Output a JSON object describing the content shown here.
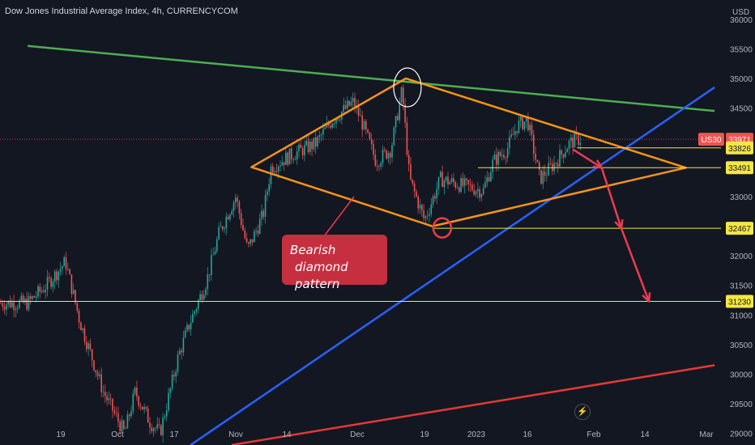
{
  "header": {
    "title": "Dow Jones Industrial Average Index, 4h, CURRENCYCOM"
  },
  "annotation": {
    "line1": "Bearish",
    "line2": "diamond pattern"
  },
  "colors": {
    "background": "#131722",
    "up": "#26a69a",
    "down": "#ef5350",
    "orange": "#f7931a",
    "green": "#4caf50",
    "blue": "#2962ff",
    "red": "#e53935",
    "yellow": "#f5e642",
    "arrow": "#ef3b4e"
  },
  "icons": {
    "flash": "lightning-icon"
  },
  "chart_data": {
    "type": "candlestick",
    "title": "Dow Jones Industrial Average Index, 4h, CURRENCYCOM",
    "currency": "USD",
    "ylim": [
      28800,
      36300
    ],
    "y_ticks": [
      29000,
      29500,
      30000,
      30500,
      31000,
      31500,
      32000,
      32500,
      33000,
      33500,
      34000,
      34500,
      35000,
      35500,
      36000
    ],
    "x_ticks": [
      "19",
      "Oct",
      "17",
      "Nov",
      "14",
      "Dec",
      "19",
      "2023",
      "16",
      "Feb",
      "14",
      "Mar"
    ],
    "grid": false,
    "price_path": [
      {
        "x": "Sep 12",
        "y": 31200
      },
      {
        "x": "Sep 16",
        "y": 31500
      },
      {
        "x": "Sep 20",
        "y": 31900
      },
      {
        "x": "Sep 23",
        "y": 30900
      },
      {
        "x": "Sep 28",
        "y": 29700
      },
      {
        "x": "Oct 3",
        "y": 29000
      },
      {
        "x": "Oct 6",
        "y": 29700
      },
      {
        "x": "Oct 10",
        "y": 29200
      },
      {
        "x": "Oct 13",
        "y": 29000
      },
      {
        "x": "Oct 18",
        "y": 30300
      },
      {
        "x": "Oct 21",
        "y": 30900
      },
      {
        "x": "Oct 25",
        "y": 31600
      },
      {
        "x": "Oct 28",
        "y": 32400
      },
      {
        "x": "Nov 1",
        "y": 33000
      },
      {
        "x": "Nov 4",
        "y": 32100
      },
      {
        "x": "Nov 8",
        "y": 32700
      },
      {
        "x": "Nov 10",
        "y": 33500
      },
      {
        "x": "Nov 15",
        "y": 33700
      },
      {
        "x": "Nov 21",
        "y": 33900
      },
      {
        "x": "Nov 25",
        "y": 34300
      },
      {
        "x": "Nov 30",
        "y": 34600
      },
      {
        "x": "Dec 2",
        "y": 34300
      },
      {
        "x": "Dec 6",
        "y": 33600
      },
      {
        "x": "Dec 10",
        "y": 33800
      },
      {
        "x": "Dec 13",
        "y": 34800
      },
      {
        "x": "Dec 15",
        "y": 33300
      },
      {
        "x": "Dec 19",
        "y": 32600
      },
      {
        "x": "Dec 23",
        "y": 33300
      },
      {
        "x": "Dec 28",
        "y": 33200
      },
      {
        "x": "Jan 3",
        "y": 33100
      },
      {
        "x": "Jan 6",
        "y": 33600
      },
      {
        "x": "Jan 10",
        "y": 33800
      },
      {
        "x": "Jan 13",
        "y": 34200
      },
      {
        "x": "Jan 16",
        "y": 34300
      },
      {
        "x": "Jan 19",
        "y": 33300
      },
      {
        "x": "Jan 23",
        "y": 33600
      },
      {
        "x": "Jan 26",
        "y": 33900
      },
      {
        "x": "Jan 28",
        "y": 33971
      }
    ],
    "price_tags": [
      {
        "label": "US30",
        "value": 33971,
        "color": "#ef5350"
      },
      {
        "label": "",
        "value": 33826,
        "color": "#f5e642"
      },
      {
        "label": "",
        "value": 33491,
        "color": "#f5e642"
      },
      {
        "label": "",
        "value": 32467,
        "color": "#f5e642"
      },
      {
        "label": "",
        "value": 31230,
        "color": "#f5e642"
      }
    ],
    "horizontal_levels": [
      33826,
      33491,
      32467,
      31230
    ],
    "diamond": {
      "left": {
        "x": "Nov 5",
        "y": 33500
      },
      "top": {
        "x": "Dec 14",
        "y": 35000
      },
      "right": {
        "x": "Feb 24",
        "y": 33490
      },
      "bottom": {
        "x": "Dec 21",
        "y": 32500
      }
    },
    "trendlines": [
      {
        "name": "green",
        "from": {
          "x": "Sep 12",
          "y": 35550
        },
        "to": {
          "x": "Mar 3",
          "y": 34450
        }
      },
      {
        "name": "blue",
        "from": {
          "x": "Oct 21",
          "y": 28800
        },
        "to": {
          "x": "Mar 3",
          "y": 34850
        }
      },
      {
        "name": "red",
        "from": {
          "x": "Oct 31",
          "y": 28800
        },
        "to": {
          "x": "Mar 3",
          "y": 30150
        }
      }
    ],
    "projection_path": [
      {
        "x": "Jan 27",
        "y": 33800
      },
      {
        "x": "Feb 3",
        "y": 33491
      },
      {
        "x": "Feb 8",
        "y": 32467
      },
      {
        "x": "Feb 15",
        "y": 31230
      }
    ]
  }
}
